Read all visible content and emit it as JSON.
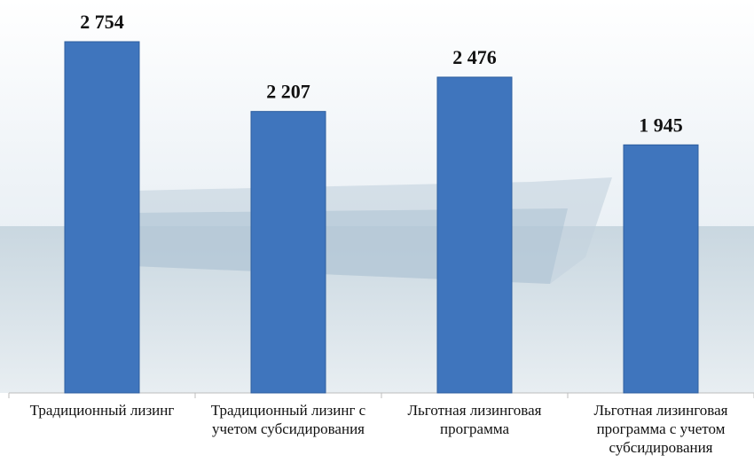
{
  "chart_data": {
    "type": "bar",
    "categories": [
      "Традиционный лизинг",
      "Традиционный лизинг с учетом субсидирования",
      "Льготная лизинговая программа",
      "Льготная лизинговая программа с учетом субсидирования"
    ],
    "values": [
      2754,
      2207,
      2476,
      1945
    ],
    "value_labels": [
      "2 754",
      "2 207",
      "2 476",
      "1 945"
    ],
    "color": "#3f75bd"
  }
}
